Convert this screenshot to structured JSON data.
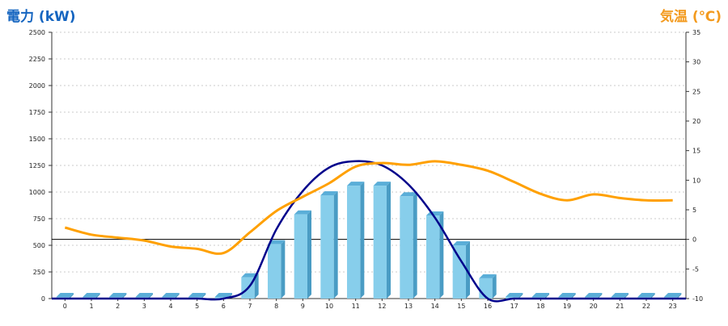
{
  "chart_data": {
    "type": "bar",
    "title": "",
    "left_axis_title": "電力 (kW)",
    "right_axis_title": "気温 (℃)",
    "categories": [
      "0",
      "1",
      "2",
      "3",
      "4",
      "5",
      "6",
      "7",
      "8",
      "9",
      "10",
      "11",
      "12",
      "13",
      "14",
      "15",
      "16",
      "17",
      "18",
      "19",
      "20",
      "21",
      "22",
      "23"
    ],
    "y_left": {
      "ylim": [
        0,
        2500
      ],
      "ticks": [
        0,
        250,
        500,
        750,
        1000,
        1250,
        1500,
        1750,
        2000,
        2250,
        2500
      ]
    },
    "y_right": {
      "ylim": [
        -10,
        35
      ],
      "ticks": [
        -10,
        -5,
        0,
        5,
        10,
        15,
        20,
        25,
        30,
        35
      ]
    },
    "grid": true,
    "zero_line_right_axis": 0,
    "series": [
      {
        "kind": "bar",
        "axis": "left",
        "color": "#87ceeb",
        "values": [
          0,
          0,
          0,
          0,
          0,
          0,
          0,
          200,
          510,
          790,
          970,
          1060,
          1060,
          960,
          780,
          500,
          190,
          0,
          0,
          0,
          0,
          0,
          0,
          0
        ]
      },
      {
        "kind": "line",
        "axis": "left",
        "color": "#00008b",
        "values": [
          0,
          0,
          0,
          0,
          0,
          0,
          0,
          120,
          650,
          1010,
          1230,
          1290,
          1250,
          1070,
          760,
          350,
          0,
          0,
          0,
          0,
          0,
          0,
          0,
          0
        ]
      },
      {
        "kind": "line",
        "axis": "right",
        "color": "#ffa000",
        "values": [
          2.0,
          0.8,
          0.3,
          -0.2,
          -1.2,
          -1.6,
          -2.3,
          1.2,
          4.8,
          7.2,
          9.5,
          12.3,
          12.9,
          12.6,
          13.2,
          12.6,
          11.6,
          9.7,
          7.7,
          6.6,
          7.6,
          7.0,
          6.6,
          6.6
        ]
      }
    ]
  }
}
